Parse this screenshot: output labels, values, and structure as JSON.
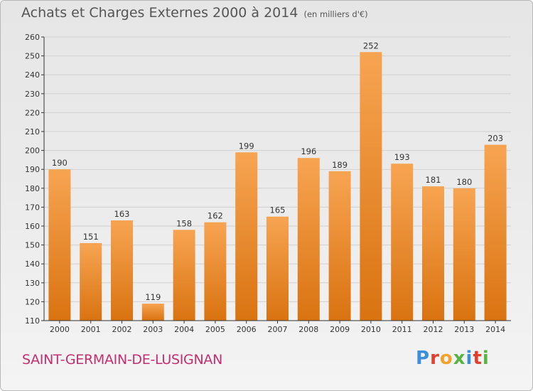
{
  "header": {
    "title": "Achats et Charges Externes 2000 à 2014",
    "unit": "(en milliers d'€)"
  },
  "footer": {
    "city": "SAINT-GERMAIN-DE-LUSIGNAN",
    "logo": "Proxiti"
  },
  "colors": {
    "bar_top": "#f7a452",
    "bar_bottom": "#d97310",
    "title": "#555555",
    "city": "#c0306f",
    "axis": "#333333",
    "grid": "#d0d0d0"
  },
  "chart_data": {
    "type": "bar",
    "categories": [
      "2000",
      "2001",
      "2002",
      "2003",
      "2004",
      "2005",
      "2006",
      "2007",
      "2008",
      "2009",
      "2010",
      "2011",
      "2012",
      "2013",
      "2014"
    ],
    "values": [
      190,
      151,
      163,
      119,
      158,
      162,
      199,
      165,
      196,
      189,
      252,
      193,
      181,
      180,
      203
    ],
    "ylim": [
      110,
      260
    ],
    "yticks": [
      110,
      120,
      130,
      140,
      150,
      160,
      170,
      180,
      190,
      200,
      210,
      220,
      230,
      240,
      250,
      260
    ],
    "grid": true,
    "legend": "none"
  }
}
